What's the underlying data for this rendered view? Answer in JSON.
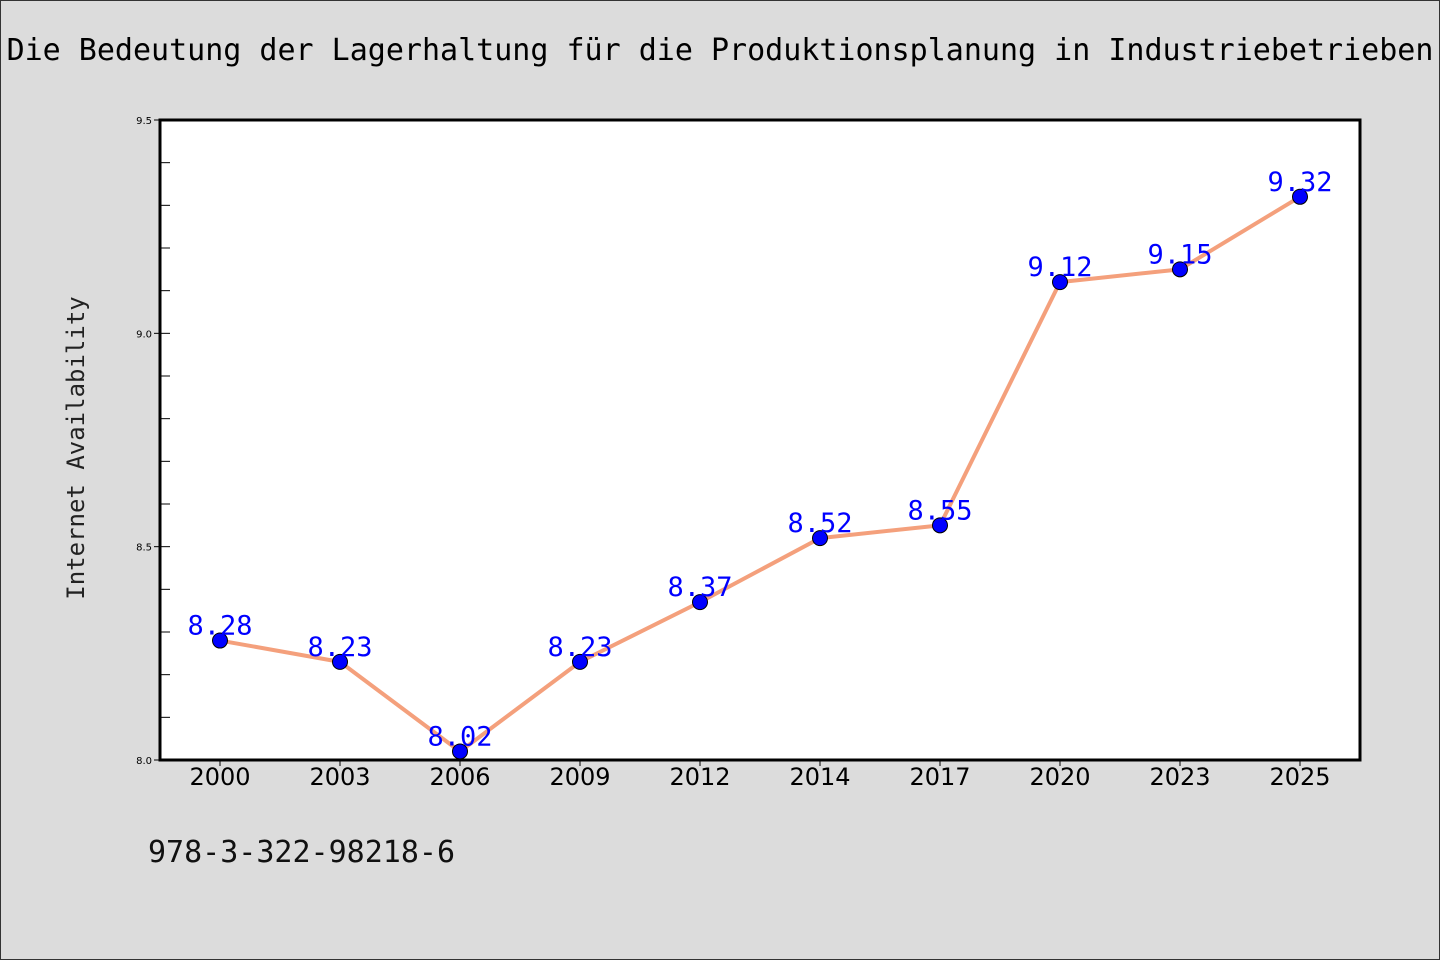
{
  "title": "Die Bedeutung der Lagerhaltung für die Produktionsplanung in Industriebetrieben",
  "isbn": "978-3-322-98218-6",
  "chart_data": {
    "type": "line",
    "title": "Die Bedeutung der Lagerhaltung für die Produktionsplanung in Industriebetrieben",
    "xlabel": "",
    "ylabel": "Internet Availability",
    "categories": [
      "2000",
      "2003",
      "2006",
      "2009",
      "2012",
      "2014",
      "2017",
      "2020",
      "2023",
      "2025"
    ],
    "series": [
      {
        "values": [
          8.28,
          8.23,
          8.02,
          8.23,
          8.37,
          8.52,
          8.55,
          9.12,
          9.15,
          9.32
        ],
        "line_color": "#f4a07c",
        "marker_color": "#0000ff"
      }
    ],
    "data_labels": [
      "8.28",
      "8.23",
      "8.02",
      "8.23",
      "8.37",
      "8.52",
      "8.55",
      "9.12",
      "9.15",
      "9.32"
    ],
    "ylim": [
      8.0,
      9.5
    ],
    "yticks": [
      "8.0",
      "8.5",
      "9.0",
      "9.5"
    ],
    "grid": false,
    "legend": "none"
  },
  "colors": {
    "background": "#dcdcdc",
    "plot_background": "#ffffff",
    "line": "#f4a07c",
    "marker": "#0000ff",
    "label": "#0000ff"
  }
}
